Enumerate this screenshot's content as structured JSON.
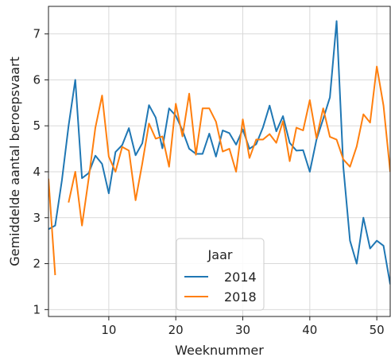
{
  "chart_data": {
    "type": "line",
    "xlabel": "Weeknummer",
    "ylabel": "Gemiddelde aantal beroepsvaart",
    "xlim": [
      1,
      52
    ],
    "ylim": [
      0.85,
      7.6
    ],
    "xticks": [
      10,
      20,
      30,
      40,
      50
    ],
    "yticks": [
      1,
      2,
      3,
      4,
      5,
      6,
      7
    ],
    "grid": true,
    "legend": {
      "title": "Jaar",
      "position": "bottom-center"
    },
    "series": [
      {
        "name": "2014",
        "color": "#1f77b4",
        "points": [
          [
            1,
            2.75
          ],
          [
            2,
            2.83
          ],
          [
            3,
            3.81
          ],
          [
            4,
            5.0
          ],
          [
            5,
            6.0
          ],
          [
            6,
            3.86
          ],
          [
            7,
            3.97
          ],
          [
            8,
            4.35
          ],
          [
            9,
            4.17
          ],
          [
            10,
            3.53
          ],
          [
            11,
            4.43
          ],
          [
            12,
            4.58
          ],
          [
            13,
            4.95
          ],
          [
            14,
            4.36
          ],
          [
            15,
            4.62
          ],
          [
            16,
            5.45
          ],
          [
            17,
            5.18
          ],
          [
            18,
            4.51
          ],
          [
            19,
            5.38
          ],
          [
            20,
            5.22
          ],
          [
            21,
            4.9
          ],
          [
            22,
            4.5
          ],
          [
            23,
            4.39
          ],
          [
            24,
            4.39
          ],
          [
            25,
            4.83
          ],
          [
            26,
            4.33
          ],
          [
            27,
            4.9
          ],
          [
            28,
            4.84
          ],
          [
            29,
            4.59
          ],
          [
            30,
            4.92
          ],
          [
            31,
            4.5
          ],
          [
            32,
            4.6
          ],
          [
            33,
            4.96
          ],
          [
            34,
            5.44
          ],
          [
            35,
            4.88
          ],
          [
            36,
            5.21
          ],
          [
            37,
            4.63
          ],
          [
            38,
            4.46
          ],
          [
            39,
            4.47
          ],
          [
            40,
            4.0
          ],
          [
            41,
            4.7
          ],
          [
            42,
            5.15
          ],
          [
            43,
            5.62
          ],
          [
            44,
            7.28
          ],
          [
            45,
            4.11
          ],
          [
            46,
            2.5
          ],
          [
            47,
            2.0
          ],
          [
            48,
            3.0
          ],
          [
            49,
            2.33
          ],
          [
            50,
            2.5
          ],
          [
            51,
            2.39
          ],
          [
            52,
            1.55
          ]
        ]
      },
      {
        "name": "2018",
        "color": "#ff7f0e",
        "segments": [
          [
            [
              1,
              3.85
            ],
            [
              2,
              1.75
            ]
          ],
          [
            [
              4,
              3.33
            ],
            [
              5,
              4.0
            ],
            [
              6,
              2.83
            ],
            [
              7,
              3.85
            ],
            [
              8,
              4.96
            ],
            [
              9,
              5.66
            ],
            [
              10,
              4.33
            ],
            [
              11,
              4.0
            ],
            [
              12,
              4.54
            ],
            [
              13,
              4.46
            ],
            [
              14,
              3.38
            ],
            [
              15,
              4.18
            ],
            [
              16,
              5.05
            ],
            [
              17,
              4.72
            ],
            [
              18,
              4.77
            ],
            [
              19,
              4.11
            ],
            [
              20,
              5.48
            ],
            [
              21,
              4.77
            ],
            [
              22,
              5.7
            ],
            [
              23,
              4.37
            ],
            [
              24,
              5.38
            ],
            [
              25,
              5.38
            ],
            [
              26,
              5.09
            ],
            [
              27,
              4.44
            ],
            [
              28,
              4.5
            ],
            [
              29,
              4.0
            ],
            [
              30,
              5.14
            ],
            [
              31,
              4.3
            ],
            [
              32,
              4.7
            ],
            [
              33,
              4.7
            ],
            [
              34,
              4.82
            ],
            [
              35,
              4.63
            ],
            [
              36,
              5.1
            ],
            [
              37,
              4.23
            ],
            [
              38,
              4.96
            ],
            [
              39,
              4.9
            ],
            [
              40,
              5.56
            ],
            [
              41,
              4.73
            ],
            [
              42,
              5.38
            ],
            [
              43,
              4.76
            ],
            [
              44,
              4.7
            ],
            [
              45,
              4.27
            ],
            [
              46,
              4.11
            ],
            [
              47,
              4.55
            ],
            [
              48,
              5.25
            ],
            [
              49,
              5.07
            ],
            [
              50,
              6.29
            ],
            [
              51,
              5.44
            ],
            [
              52,
              4.0
            ]
          ]
        ]
      }
    ]
  }
}
